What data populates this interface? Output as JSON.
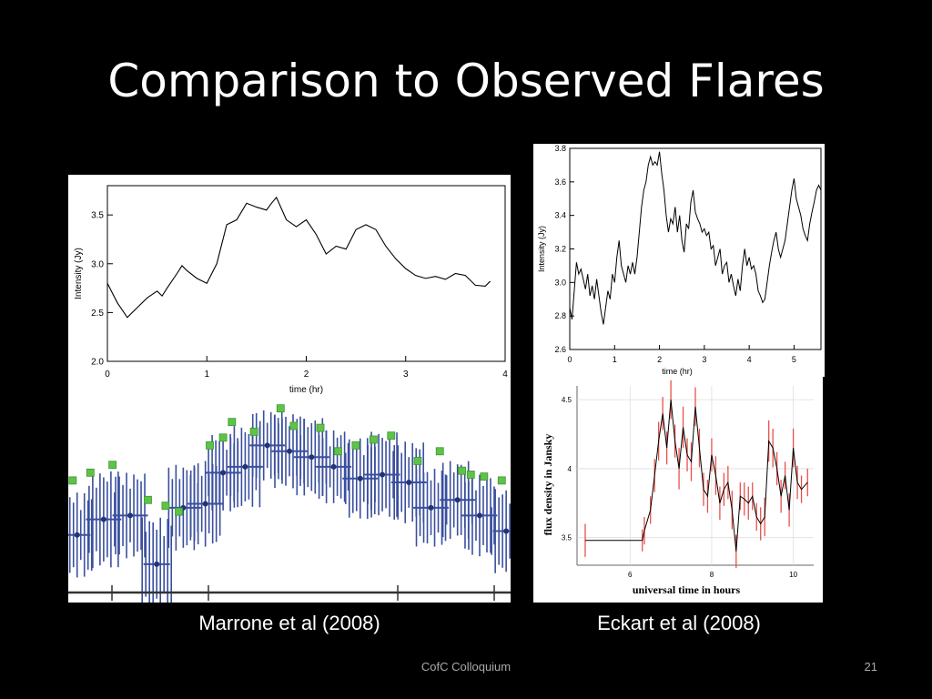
{
  "slide": {
    "title": "Comparison to Observed Flares",
    "footer": "CofC Colloquium",
    "page_number": "21",
    "captions": {
      "left": "Marrone et al (2008)",
      "right": "Eckart et al (2008)"
    }
  },
  "chart_data": [
    {
      "type": "line",
      "xlabel": "time (hr)",
      "ylabel": "Intensity (Jy)",
      "xlim": [
        0,
        4
      ],
      "ylim": [
        2.0,
        3.8
      ],
      "xticks": [
        0,
        1,
        2,
        3,
        4
      ],
      "yticks": [
        2.0,
        2.5,
        3.0,
        3.5
      ],
      "ytick_labels": [
        "2.0",
        "2.5",
        "3.0",
        "3.5"
      ],
      "series": [
        {
          "color": "#000000",
          "x": [
            0,
            0.1,
            0.2,
            0.3,
            0.4,
            0.5,
            0.55,
            0.6,
            0.7,
            0.75,
            0.8,
            0.9,
            1.0,
            1.1,
            1.2,
            1.3,
            1.4,
            1.5,
            1.6,
            1.65,
            1.7,
            1.8,
            1.9,
            2.0,
            2.1,
            2.2,
            2.3,
            2.4,
            2.5,
            2.6,
            2.7,
            2.8,
            2.9,
            3.0,
            3.1,
            3.2,
            3.3,
            3.4,
            3.5,
            3.6,
            3.7,
            3.8,
            3.85
          ],
          "y": [
            2.8,
            2.6,
            2.45,
            2.55,
            2.65,
            2.72,
            2.67,
            2.75,
            2.9,
            2.98,
            2.93,
            2.85,
            2.8,
            3.0,
            3.4,
            3.45,
            3.62,
            3.58,
            3.55,
            3.62,
            3.68,
            3.45,
            3.38,
            3.45,
            3.3,
            3.1,
            3.18,
            3.15,
            3.35,
            3.4,
            3.35,
            3.18,
            3.05,
            2.95,
            2.88,
            2.85,
            2.87,
            2.84,
            2.9,
            2.88,
            2.78,
            2.77,
            2.82
          ]
        }
      ]
    },
    {
      "type": "scatter",
      "xlabel": "",
      "ylabel": "",
      "xlim": [
        0,
        10
      ],
      "ylim": [
        0,
        10
      ],
      "series": [
        {
          "color": "#3a4f9e",
          "marker": "errorbar",
          "points": [
            {
              "x": 0.2,
              "y": 3.0,
              "yerr": 2.2,
              "xerr": 0.3
            },
            {
              "x": 0.8,
              "y": 3.8,
              "yerr": 2.5,
              "xerr": 0.4
            },
            {
              "x": 1.4,
              "y": 4.0,
              "yerr": 2.2,
              "xerr": 0.4
            },
            {
              "x": 2.0,
              "y": 1.5,
              "yerr": 2.4,
              "xerr": 0.3
            },
            {
              "x": 2.6,
              "y": 4.4,
              "yerr": 2.2,
              "xerr": 0.4
            },
            {
              "x": 3.1,
              "y": 4.6,
              "yerr": 2.2,
              "xerr": 0.4
            },
            {
              "x": 3.5,
              "y": 6.2,
              "yerr": 2.0,
              "xerr": 0.4
            },
            {
              "x": 4.0,
              "y": 6.5,
              "yerr": 2.1,
              "xerr": 0.4
            },
            {
              "x": 4.5,
              "y": 7.6,
              "yerr": 1.8,
              "xerr": 0.4
            },
            {
              "x": 5.0,
              "y": 7.3,
              "yerr": 1.9,
              "xerr": 0.4
            },
            {
              "x": 5.5,
              "y": 7.0,
              "yerr": 2.0,
              "xerr": 0.4
            },
            {
              "x": 6.0,
              "y": 6.5,
              "yerr": 1.9,
              "xerr": 0.4
            },
            {
              "x": 6.6,
              "y": 5.9,
              "yerr": 2.1,
              "xerr": 0.4
            },
            {
              "x": 7.1,
              "y": 6.1,
              "yerr": 2.2,
              "xerr": 0.4
            },
            {
              "x": 7.7,
              "y": 5.7,
              "yerr": 2.1,
              "xerr": 0.4
            },
            {
              "x": 8.2,
              "y": 4.4,
              "yerr": 2.0,
              "xerr": 0.4
            },
            {
              "x": 8.8,
              "y": 4.8,
              "yerr": 2.0,
              "xerr": 0.4
            },
            {
              "x": 9.3,
              "y": 4.0,
              "yerr": 2.1,
              "xerr": 0.4
            },
            {
              "x": 9.9,
              "y": 3.2,
              "yerr": 2.2,
              "xerr": 0.3
            }
          ]
        },
        {
          "color": "#5fc24a",
          "marker": "square",
          "points": [
            {
              "x": 0.1,
              "y": 5.8
            },
            {
              "x": 0.5,
              "y": 6.2
            },
            {
              "x": 1.0,
              "y": 6.6
            },
            {
              "x": 1.8,
              "y": 4.8
            },
            {
              "x": 2.2,
              "y": 4.5
            },
            {
              "x": 2.5,
              "y": 4.2
            },
            {
              "x": 3.2,
              "y": 7.6
            },
            {
              "x": 3.5,
              "y": 8.0
            },
            {
              "x": 3.7,
              "y": 8.8
            },
            {
              "x": 4.2,
              "y": 8.3
            },
            {
              "x": 4.8,
              "y": 9.5
            },
            {
              "x": 5.1,
              "y": 8.6
            },
            {
              "x": 5.7,
              "y": 8.5
            },
            {
              "x": 6.1,
              "y": 7.3
            },
            {
              "x": 6.5,
              "y": 7.6
            },
            {
              "x": 6.9,
              "y": 7.9
            },
            {
              "x": 7.3,
              "y": 8.1
            },
            {
              "x": 7.9,
              "y": 6.8
            },
            {
              "x": 8.4,
              "y": 7.3
            },
            {
              "x": 8.9,
              "y": 6.3
            },
            {
              "x": 9.1,
              "y": 6.1
            },
            {
              "x": 9.4,
              "y": 6.0
            },
            {
              "x": 9.8,
              "y": 5.8
            }
          ]
        }
      ]
    },
    {
      "type": "line",
      "xlabel": "time (hr)",
      "ylabel": "Intensity (Jy)",
      "xlim": [
        0,
        5.6
      ],
      "ylim": [
        2.6,
        3.8
      ],
      "xticks": [
        0,
        1,
        2,
        3,
        4,
        5
      ],
      "yticks": [
        2.6,
        2.8,
        3.0,
        3.2,
        3.4,
        3.6,
        3.8
      ],
      "ytick_labels": [
        "2.6",
        "2.8",
        "3.0",
        "3.2",
        "3.4",
        "3.6",
        "3.8"
      ],
      "series": [
        {
          "color": "#000000",
          "x": [
            0,
            0.05,
            0.1,
            0.15,
            0.2,
            0.25,
            0.3,
            0.35,
            0.4,
            0.45,
            0.5,
            0.55,
            0.6,
            0.65,
            0.7,
            0.75,
            0.8,
            0.85,
            0.9,
            0.95,
            1.0,
            1.05,
            1.1,
            1.15,
            1.2,
            1.25,
            1.3,
            1.35,
            1.4,
            1.45,
            1.5,
            1.55,
            1.6,
            1.65,
            1.7,
            1.75,
            1.8,
            1.85,
            1.9,
            1.95,
            2.0,
            2.05,
            2.1,
            2.15,
            2.2,
            2.25,
            2.3,
            2.35,
            2.4,
            2.45,
            2.5,
            2.55,
            2.6,
            2.65,
            2.7,
            2.75,
            2.8,
            2.85,
            2.9,
            2.95,
            3.0,
            3.05,
            3.1,
            3.15,
            3.2,
            3.25,
            3.3,
            3.35,
            3.4,
            3.45,
            3.5,
            3.55,
            3.6,
            3.65,
            3.7,
            3.75,
            3.8,
            3.85,
            3.9,
            3.95,
            4.0,
            4.05,
            4.1,
            4.15,
            4.2,
            4.25,
            4.3,
            4.35,
            4.4,
            4.45,
            4.5,
            4.55,
            4.6,
            4.65,
            4.7,
            4.75,
            4.8,
            4.85,
            4.9,
            4.95,
            5.0,
            5.05,
            5.1,
            5.15,
            5.2,
            5.25,
            5.3,
            5.35,
            5.4,
            5.45,
            5.5,
            5.55,
            5.6
          ],
          "y": [
            2.85,
            2.78,
            2.95,
            3.12,
            3.05,
            3.08,
            3.02,
            2.96,
            3.05,
            2.92,
            2.98,
            2.9,
            3.02,
            2.92,
            2.82,
            2.75,
            2.85,
            2.95,
            2.9,
            3.05,
            3.0,
            3.15,
            3.25,
            3.1,
            3.05,
            3.0,
            3.1,
            3.05,
            3.12,
            3.05,
            3.15,
            3.3,
            3.45,
            3.55,
            3.6,
            3.7,
            3.75,
            3.7,
            3.72,
            3.7,
            3.78,
            3.65,
            3.55,
            3.4,
            3.3,
            3.38,
            3.35,
            3.45,
            3.3,
            3.4,
            3.25,
            3.18,
            3.35,
            3.32,
            3.48,
            3.55,
            3.42,
            3.38,
            3.35,
            3.3,
            3.32,
            3.28,
            3.3,
            3.2,
            3.22,
            3.1,
            3.15,
            3.2,
            3.05,
            3.1,
            3.12,
            3.0,
            3.05,
            2.98,
            2.92,
            3.02,
            2.95,
            3.1,
            3.2,
            3.1,
            3.15,
            3.08,
            3.1,
            3.05,
            2.95,
            2.92,
            2.88,
            2.9,
            3.0,
            3.1,
            3.18,
            3.25,
            3.3,
            3.2,
            3.15,
            3.2,
            3.25,
            3.35,
            3.45,
            3.55,
            3.62,
            3.5,
            3.45,
            3.4,
            3.32,
            3.28,
            3.25,
            3.35,
            3.42,
            3.48,
            3.55,
            3.58,
            3.55
          ]
        }
      ]
    },
    {
      "type": "line",
      "xlabel": "universal time in hours",
      "ylabel": "flux density in Jansky",
      "xlim": [
        4.7,
        10.5
      ],
      "ylim": [
        3.3,
        4.6
      ],
      "xticks": [
        6,
        8,
        10
      ],
      "yticks": [
        3.5,
        4.0,
        4.5
      ],
      "ytick_labels": [
        "3.5",
        "4",
        "4.5"
      ],
      "series": [
        {
          "color": "#000000",
          "errorbar_color": "#e8514a",
          "x": [
            4.9,
            6.3,
            6.35,
            6.5,
            6.6,
            6.7,
            6.8,
            6.9,
            7.0,
            7.1,
            7.2,
            7.3,
            7.4,
            7.5,
            7.6,
            7.7,
            7.8,
            7.9,
            8.0,
            8.1,
            8.2,
            8.3,
            8.4,
            8.5,
            8.6,
            8.7,
            8.8,
            8.9,
            9.0,
            9.1,
            9.2,
            9.3,
            9.4,
            9.5,
            9.6,
            9.7,
            9.8,
            9.9,
            10.0,
            10.1,
            10.2,
            10.35
          ],
          "y": [
            3.48,
            3.48,
            3.55,
            3.7,
            3.95,
            4.2,
            4.4,
            4.15,
            4.5,
            4.2,
            4.0,
            4.3,
            4.1,
            4.05,
            4.45,
            4.15,
            3.85,
            3.8,
            4.1,
            3.95,
            3.75,
            3.85,
            3.9,
            3.7,
            3.4,
            3.8,
            3.78,
            3.75,
            3.8,
            3.65,
            3.6,
            3.65,
            4.2,
            4.15,
            4.0,
            3.8,
            3.95,
            3.7,
            4.15,
            3.9,
            3.85,
            3.9
          ],
          "yerr": [
            0.12,
            0.08,
            0.1,
            0.1,
            0.12,
            0.14,
            0.12,
            0.12,
            0.14,
            0.12,
            0.15,
            0.15,
            0.12,
            0.14,
            0.14,
            0.14,
            0.12,
            0.12,
            0.12,
            0.14,
            0.12,
            0.12,
            0.12,
            0.14,
            0.12,
            0.1,
            0.12,
            0.12,
            0.1,
            0.1,
            0.12,
            0.14,
            0.15,
            0.14,
            0.12,
            0.12,
            0.1,
            0.12,
            0.14,
            0.12,
            0.1,
            0.1
          ]
        }
      ]
    }
  ]
}
